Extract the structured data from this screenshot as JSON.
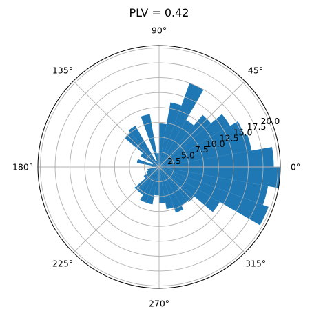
{
  "chart_data": {
    "type": "bar",
    "projection": "polar",
    "title": "PLV = 0.42",
    "theta_direction": "counterclockwise",
    "theta_zero_location": "E",
    "bin_count": 36,
    "bin_width_deg": 10,
    "bin_starts_deg": [
      0,
      10,
      20,
      30,
      40,
      50,
      60,
      70,
      80,
      90,
      100,
      110,
      120,
      130,
      140,
      150,
      160,
      170,
      180,
      190,
      200,
      210,
      220,
      230,
      240,
      250,
      260,
      270,
      280,
      290,
      300,
      310,
      320,
      330,
      340,
      350
    ],
    "values": [
      19.3,
      15.8,
      15.3,
      13.8,
      11.4,
      9.1,
      15.0,
      11.0,
      7.3,
      2.3,
      9.0,
      1.1,
      8.0,
      7.6,
      3.6,
      1.2,
      3.8,
      1.3,
      0.3,
      2.0,
      2.3,
      3.0,
      5.4,
      5.4,
      6.4,
      6.4,
      4.8,
      6.1,
      7.2,
      8.2,
      7.5,
      7.7,
      11.8,
      19.6,
      18.6,
      20.4
    ],
    "rmax": 20.4,
    "radial_ticks": [
      2.5,
      5.0,
      7.5,
      10.0,
      12.5,
      15.0,
      17.5,
      20.0
    ],
    "radial_tick_labels": [
      "2.5",
      "5.0",
      "7.5",
      "10.0",
      "12.5",
      "15.0",
      "17.5",
      "20.0"
    ],
    "radial_label_angle_deg": 22.5,
    "angular_ticks_deg": [
      0,
      45,
      90,
      135,
      180,
      225,
      270,
      315
    ],
    "angular_tick_labels": [
      "0°",
      "45°",
      "90°",
      "135°",
      "180°",
      "225°",
      "270°",
      "315°"
    ],
    "grid": true,
    "bar_color": "#1f77b4",
    "grid_color": "#b0b0b0"
  }
}
